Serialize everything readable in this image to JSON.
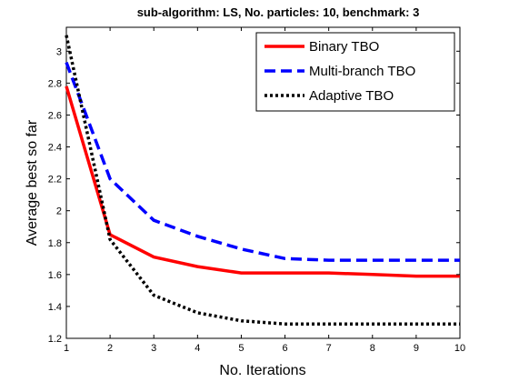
{
  "chart_data": {
    "type": "line",
    "title": "sub-algorithm: LS, No. particles: 10, benchmark: 3",
    "xlabel": "No. Iterations",
    "ylabel": "Average best so far",
    "xlim": [
      1,
      10
    ],
    "ylim": [
      1.2,
      3.15
    ],
    "x_ticks": [
      1,
      2,
      3,
      4,
      5,
      6,
      7,
      8,
      9,
      10
    ],
    "y_ticks": [
      1.2,
      1.4,
      1.6,
      1.8,
      2,
      2.2,
      2.4,
      2.6,
      2.8,
      3
    ],
    "y_tick_labels": [
      "1.2",
      "1.4",
      "1.6",
      "1.8",
      "2",
      "2.2",
      "2.4",
      "2.6",
      "2.8",
      "3"
    ],
    "grid": false,
    "legend_position": "top-right",
    "x": [
      1,
      2,
      3,
      4,
      5,
      6,
      7,
      8,
      9,
      10
    ],
    "series": [
      {
        "name": "Binary TBO",
        "color": "#ff0000",
        "style": "solid",
        "values": [
          2.78,
          1.85,
          1.71,
          1.65,
          1.61,
          1.61,
          1.61,
          1.6,
          1.59,
          1.59
        ]
      },
      {
        "name": "Multi-branch TBO",
        "color": "#0000ff",
        "style": "dashed",
        "values": [
          2.93,
          2.2,
          1.94,
          1.84,
          1.76,
          1.7,
          1.69,
          1.69,
          1.69,
          1.69
        ]
      },
      {
        "name": "Adaptive TBO",
        "color": "#000000",
        "style": "dotted",
        "values": [
          3.1,
          1.82,
          1.47,
          1.36,
          1.31,
          1.29,
          1.29,
          1.29,
          1.29,
          1.29
        ]
      }
    ]
  }
}
